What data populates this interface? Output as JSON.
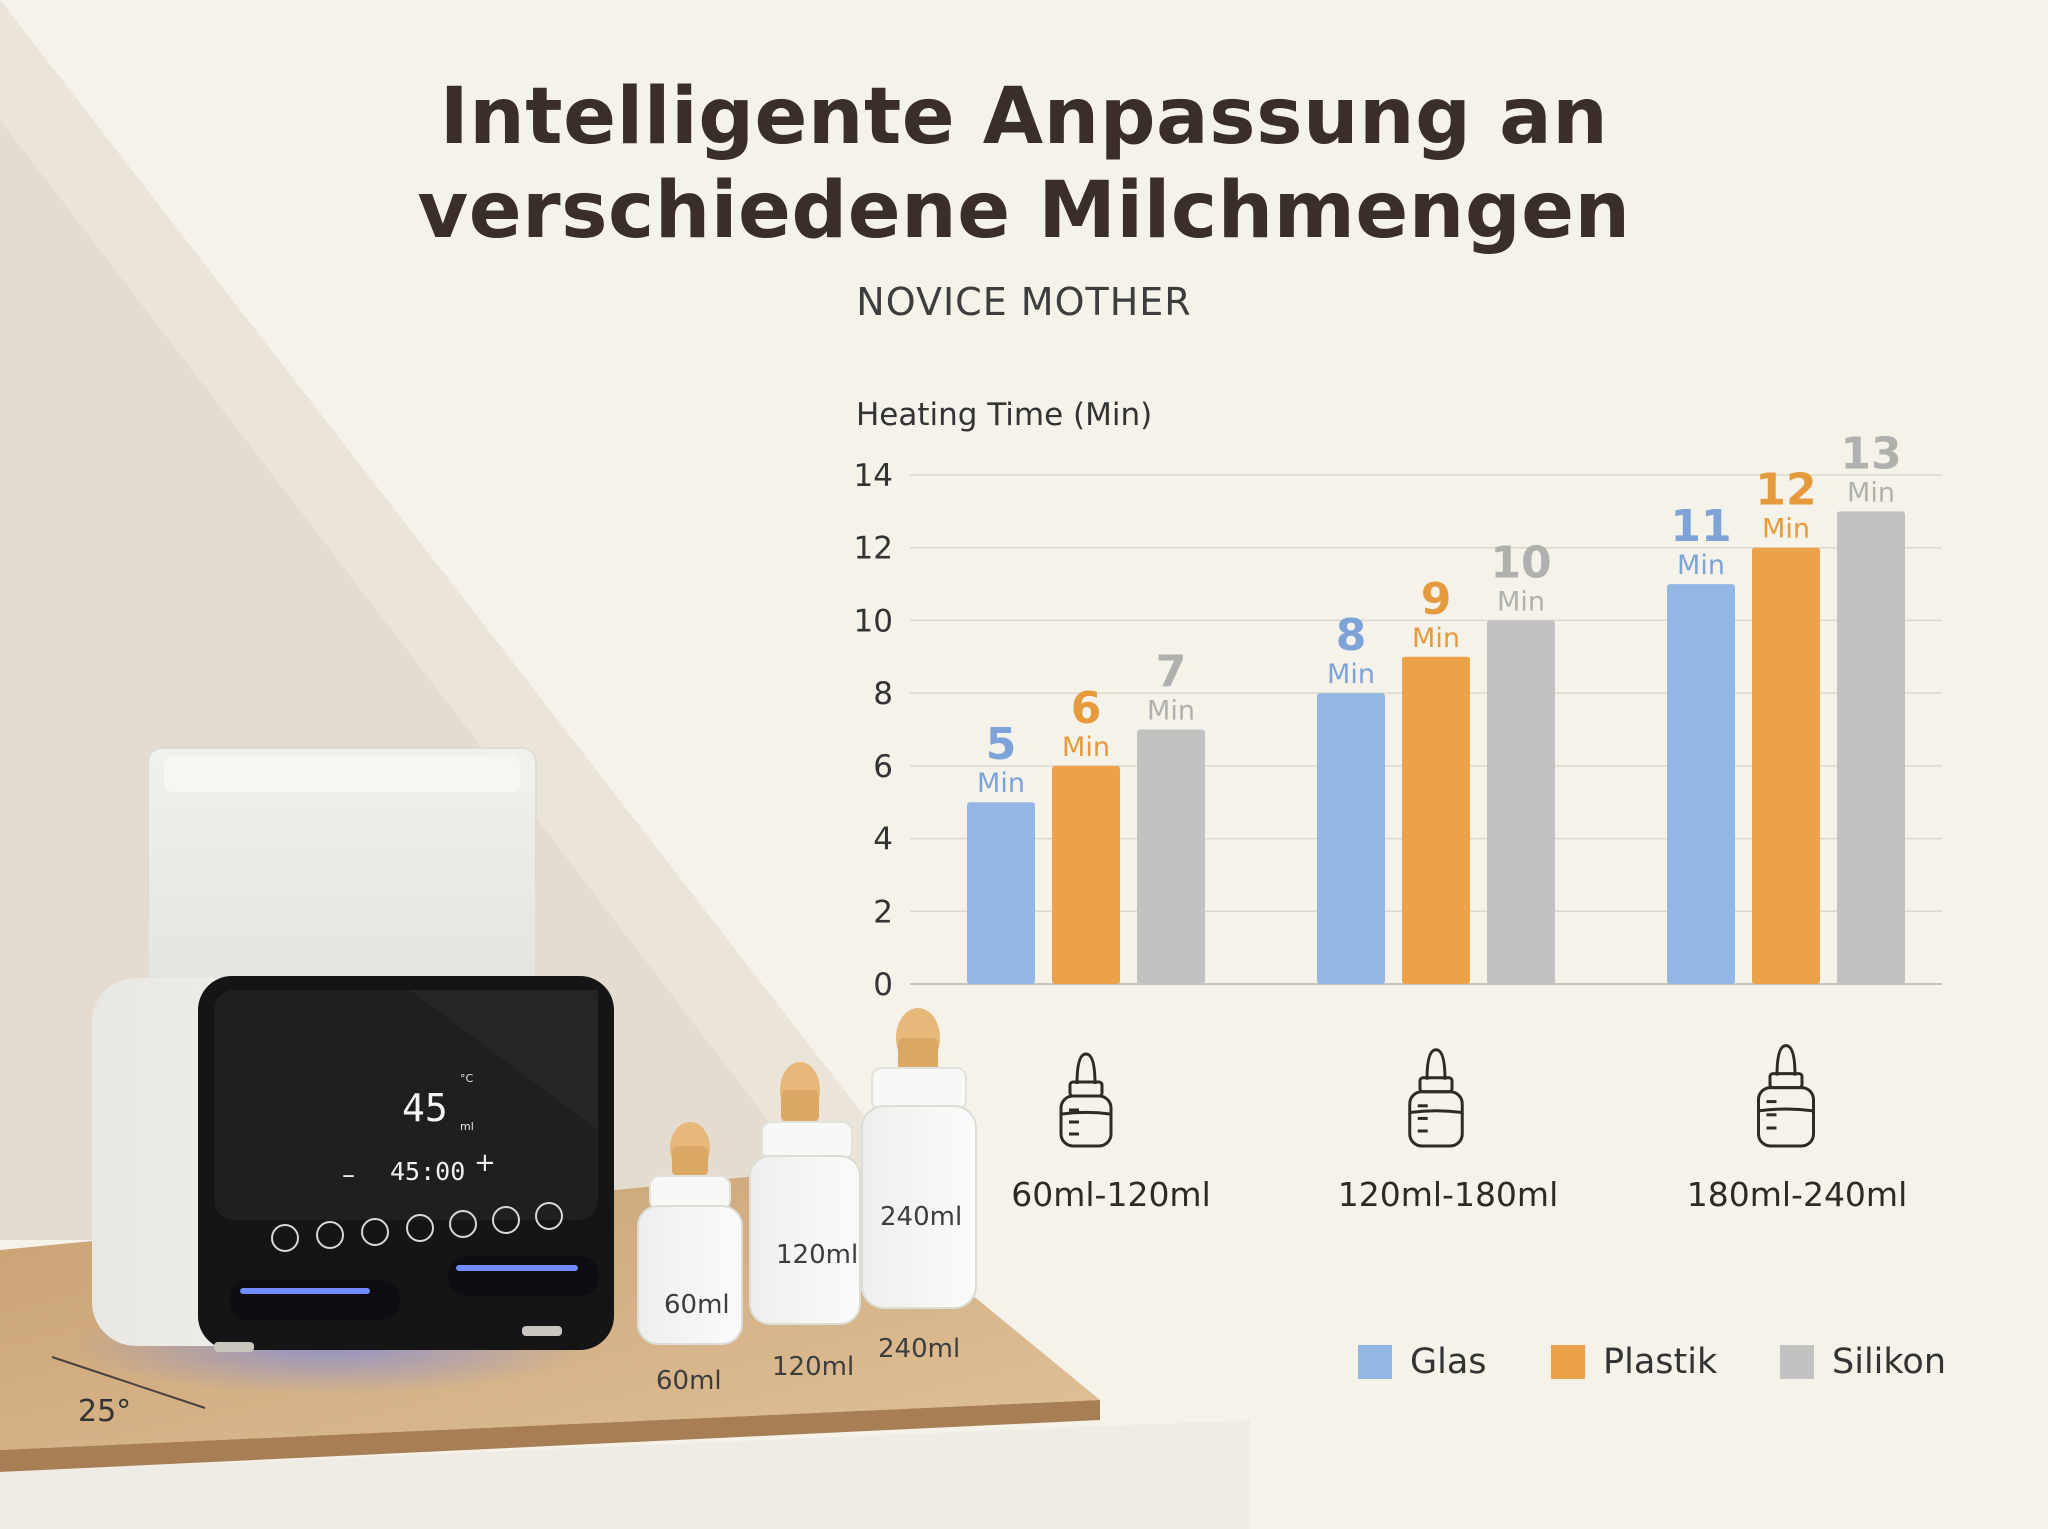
{
  "title_line1": "Intelligente Anpassung an",
  "title_line2": "verschiedene Milchmengen",
  "brand": "NOVICE MOTHER",
  "colors": {
    "glas": "#94b6e2",
    "plastik": "#eca24a",
    "silikon": "#c2c2c0",
    "glas_label": "#7ea3d8",
    "plastik_label": "#e49a3d",
    "silikon_label": "#b0b0ae",
    "text": "#3a2f28"
  },
  "chart_data": {
    "type": "bar",
    "ylabel": "Heating Time (Min)",
    "ylim": [
      0,
      14
    ],
    "yticks": [
      "0",
      "2",
      "4",
      "6",
      "8",
      "10",
      "12",
      "14"
    ],
    "grid": true,
    "categories": [
      "60ml-120ml",
      "120ml-180ml",
      "180ml-240ml"
    ],
    "category_icon": "baby-bottle-icon",
    "value_unit": "Min",
    "series": [
      {
        "name": "Glas",
        "values": [
          5,
          8,
          11
        ]
      },
      {
        "name": "Plastik",
        "values": [
          6,
          9,
          12
        ]
      },
      {
        "name": "Silikon",
        "values": [
          7,
          10,
          13
        ]
      }
    ],
    "legend_position": "bottom-right"
  },
  "device": {
    "temperature": "45",
    "temp_unit": "°C",
    "volume_unit": "ml",
    "timer": "45:00",
    "minus": "–",
    "plus": "+"
  },
  "bottles": {
    "label_60": "60ml",
    "label_120": "120ml",
    "label_240": "240ml"
  },
  "angle_label": "25°"
}
